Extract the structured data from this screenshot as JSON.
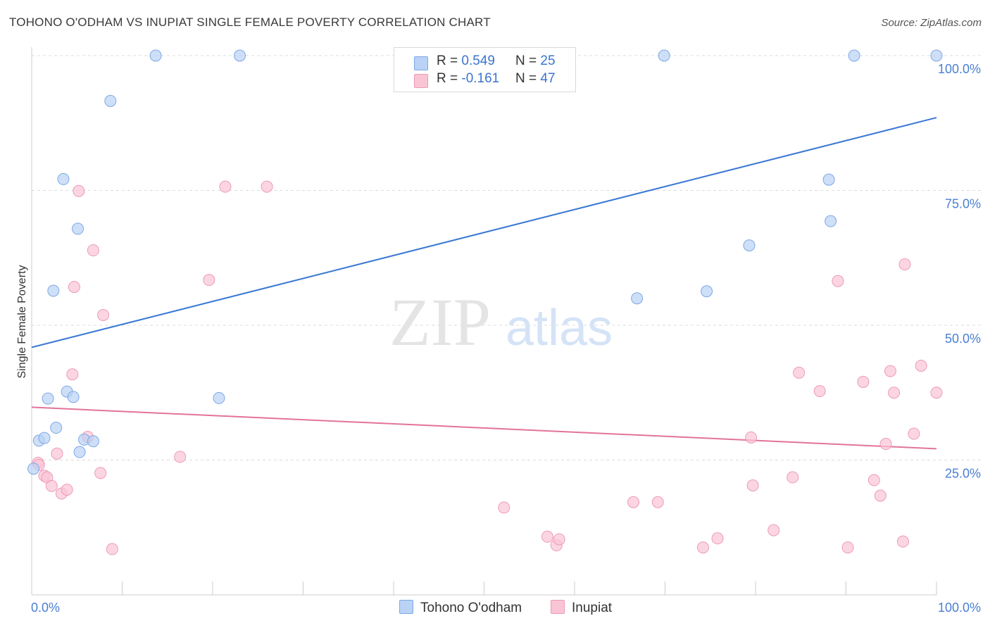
{
  "title": "TOHONO O'ODHAM VS INUPIAT SINGLE FEMALE POVERTY CORRELATION CHART",
  "source": "Source: ZipAtlas.com",
  "watermark": {
    "zip": "ZIP",
    "atlas": "atlas"
  },
  "legend": {
    "rows": [
      {
        "r_label": "R = ",
        "r_value": "0.549",
        "n_label": "N = ",
        "n_value": "25"
      },
      {
        "r_label": "R = ",
        "r_value": "-0.161",
        "n_label": "N = ",
        "n_value": "47"
      }
    ]
  },
  "colors": {
    "blue_fill": "#b9d2f5",
    "blue_stroke": "#7ea8e6",
    "blue_line": "#3a78d4",
    "pink_fill": "#f9c5d5",
    "pink_stroke": "#ee9ab6",
    "pink_line": "#e2739b",
    "tick_text": "#4a7fd1",
    "grid": "#dcdcdc"
  },
  "chart_data": {
    "type": "scatter",
    "title": "TOHONO O'ODHAM VS INUPIAT SINGLE FEMALE POVERTY CORRELATION CHART",
    "xlabel": "",
    "ylabel": "Single Female Poverty",
    "xlim": [
      0,
      100
    ],
    "ylim": [
      0,
      100
    ],
    "x_tick_labels": [
      "0.0%",
      "100.0%"
    ],
    "y_tick_labels": [
      "25.0%",
      "50.0%",
      "75.0%",
      "100.0%"
    ],
    "y_ticks": [
      25,
      50,
      75,
      100
    ],
    "grid": true,
    "legend_position": "bottom",
    "series": [
      {
        "name": "Tohono O'odham",
        "color": "#b9d2f5",
        "trend": [
          [
            0,
            45.9
          ],
          [
            100,
            88.5
          ]
        ],
        "points": [
          [
            13.7,
            100
          ],
          [
            23.0,
            100
          ],
          [
            69.9,
            100
          ],
          [
            90.9,
            100
          ],
          [
            100,
            100
          ],
          [
            8.7,
            91.6
          ],
          [
            3.5,
            77.1
          ],
          [
            5.1,
            67.9
          ],
          [
            2.4,
            56.4
          ],
          [
            66.9,
            55.0
          ],
          [
            74.6,
            56.3
          ],
          [
            88.1,
            77.0
          ],
          [
            88.3,
            69.3
          ],
          [
            79.3,
            64.8
          ],
          [
            0.8,
            28.6
          ],
          [
            1.4,
            29.1
          ],
          [
            1.8,
            36.4
          ],
          [
            2.7,
            31.0
          ],
          [
            3.9,
            37.7
          ],
          [
            4.6,
            36.7
          ],
          [
            5.3,
            26.5
          ],
          [
            5.8,
            28.8
          ],
          [
            6.8,
            28.5
          ],
          [
            20.7,
            36.5
          ],
          [
            0.2,
            23.4
          ]
        ]
      },
      {
        "name": "Inupiat",
        "color": "#f9c5d5",
        "trend": [
          [
            0,
            34.8
          ],
          [
            100,
            27.1
          ]
        ],
        "points": [
          [
            5.2,
            74.9
          ],
          [
            21.4,
            75.7
          ],
          [
            26.0,
            75.7
          ],
          [
            6.8,
            63.9
          ],
          [
            4.7,
            57.1
          ],
          [
            19.6,
            58.4
          ],
          [
            7.9,
            51.9
          ],
          [
            4.5,
            40.9
          ],
          [
            6.2,
            29.3
          ],
          [
            2.8,
            26.2
          ],
          [
            7.6,
            22.6
          ],
          [
            0.7,
            24.5
          ],
          [
            0.8,
            24.1
          ],
          [
            1.4,
            22.1
          ],
          [
            1.7,
            21.8
          ],
          [
            2.2,
            20.2
          ],
          [
            3.3,
            18.8
          ],
          [
            3.9,
            19.5
          ],
          [
            8.9,
            8.5
          ],
          [
            16.4,
            25.6
          ],
          [
            52.2,
            16.2
          ],
          [
            57.0,
            10.8
          ],
          [
            58.0,
            9.2
          ],
          [
            58.3,
            10.3
          ],
          [
            66.5,
            17.2
          ],
          [
            69.2,
            17.2
          ],
          [
            74.2,
            8.8
          ],
          [
            75.8,
            10.5
          ],
          [
            79.5,
            29.2
          ],
          [
            79.7,
            20.3
          ],
          [
            82.0,
            12.0
          ],
          [
            84.1,
            21.8
          ],
          [
            84.8,
            41.2
          ],
          [
            87.1,
            37.8
          ],
          [
            89.1,
            58.2
          ],
          [
            90.2,
            8.8
          ],
          [
            91.9,
            39.5
          ],
          [
            93.1,
            21.3
          ],
          [
            93.8,
            18.4
          ],
          [
            94.4,
            28.0
          ],
          [
            94.9,
            41.5
          ],
          [
            95.3,
            37.5
          ],
          [
            96.3,
            9.9
          ],
          [
            96.5,
            61.3
          ],
          [
            97.5,
            29.9
          ],
          [
            98.3,
            42.5
          ],
          [
            100,
            37.5
          ]
        ]
      }
    ]
  }
}
